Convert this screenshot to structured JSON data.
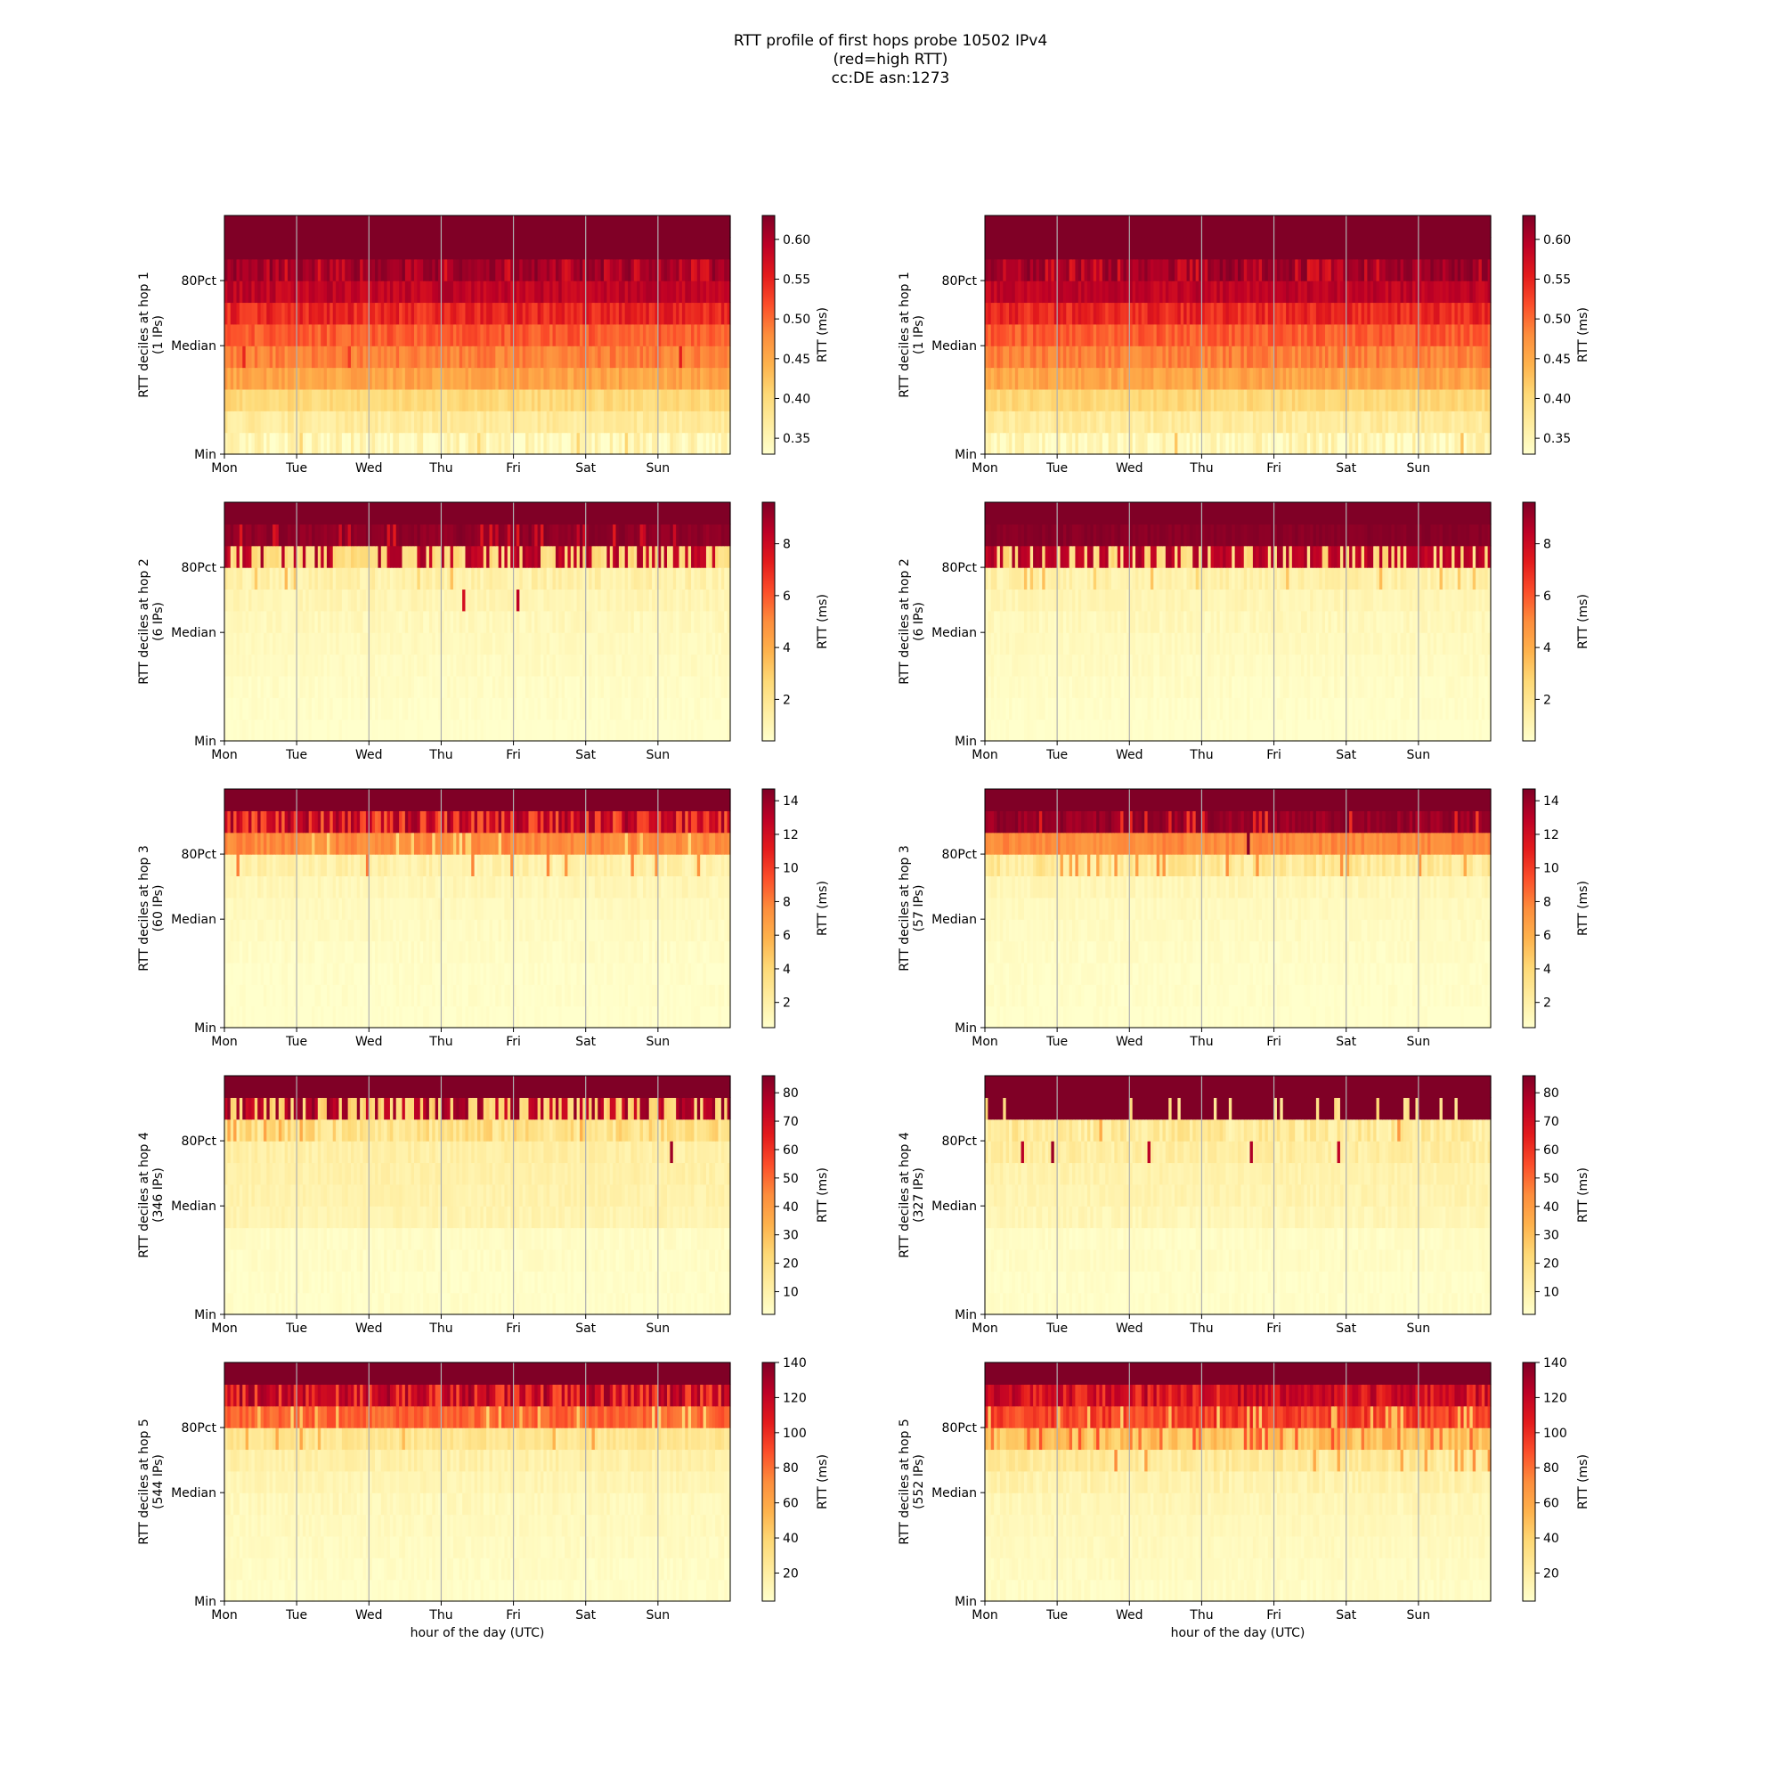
{
  "title": {
    "line1": "RTT profile of first hops probe 10502 IPv4",
    "line2": "(red=high RTT)",
    "line3": "cc:DE asn:1273"
  },
  "xlabel": "hour of the day (UTC)",
  "colorbar_label": "RTT (ms)",
  "x_ticks": [
    "Mon",
    "Tue",
    "Wed",
    "Thu",
    "Fri",
    "Sat",
    "Sun"
  ],
  "y_ticks": [
    "Min",
    "Median",
    "80Pct"
  ],
  "colormap": {
    "name": "YlOrRd",
    "stops": [
      "#ffffcc",
      "#ffeda0",
      "#fed976",
      "#feb24c",
      "#fd8d3c",
      "#fc4e2a",
      "#e31a1c",
      "#bd0026",
      "#800026"
    ]
  },
  "chart_data": [
    {
      "type": "heatmap",
      "hop": 1,
      "column": "left",
      "ylabel_line1": "RTT deciles at hop 1",
      "ylabel_line2": "(1 IPs)",
      "colorbar": {
        "range": [
          0.33,
          0.63
        ],
        "ticks": [
          0.35,
          0.4,
          0.45,
          0.5,
          0.55,
          0.6
        ],
        "tick_labels": [
          "0.35",
          "0.40",
          "0.45",
          "0.50",
          "0.55",
          "0.60"
        ]
      },
      "rows": [
        {
          "base": 0.05,
          "noise": 0.1,
          "spike": 0.02,
          "spike_value": 0.3
        },
        {
          "base": 0.14,
          "noise": 0.05,
          "spike": 0.0,
          "spike_value": 0.3
        },
        {
          "base": 0.24,
          "noise": 0.05,
          "spike": 0.0,
          "spike_value": 0.3
        },
        {
          "base": 0.42,
          "noise": 0.06,
          "spike": 0.0,
          "spike_value": 0.5
        },
        {
          "base": 0.52,
          "noise": 0.06,
          "spike": 0.01,
          "spike_value": 0.7
        },
        {
          "base": 0.6,
          "noise": 0.06,
          "spike": 0.0,
          "spike_value": 0.7
        },
        {
          "base": 0.72,
          "noise": 0.08,
          "spike": 0.0,
          "spike_value": 0.85
        },
        {
          "base": 0.86,
          "noise": 0.06,
          "spike": 0.0,
          "spike_value": 0.95
        },
        {
          "base": 0.94,
          "noise": 0.06,
          "spike": 0.2,
          "spike_value": 0.8
        },
        {
          "base": 1.0,
          "noise": 0.0,
          "spike": 0.0,
          "spike_value": 1.0
        },
        {
          "base": 1.0,
          "noise": 0.0,
          "spike": 0.0,
          "spike_value": 1.0
        }
      ]
    },
    {
      "type": "heatmap",
      "hop": 1,
      "column": "right",
      "ylabel_line1": "RTT deciles at hop 1",
      "ylabel_line2": "(1 IPs)",
      "colorbar": {
        "range": [
          0.33,
          0.63
        ],
        "ticks": [
          0.35,
          0.4,
          0.45,
          0.5,
          0.55,
          0.6
        ],
        "tick_labels": [
          "0.35",
          "0.40",
          "0.45",
          "0.50",
          "0.55",
          "0.60"
        ]
      },
      "rows": [
        {
          "base": 0.05,
          "noise": 0.1,
          "spike": 0.02,
          "spike_value": 0.3
        },
        {
          "base": 0.14,
          "noise": 0.05,
          "spike": 0.0,
          "spike_value": 0.3
        },
        {
          "base": 0.24,
          "noise": 0.05,
          "spike": 0.0,
          "spike_value": 0.3
        },
        {
          "base": 0.42,
          "noise": 0.06,
          "spike": 0.0,
          "spike_value": 0.5
        },
        {
          "base": 0.52,
          "noise": 0.06,
          "spike": 0.0,
          "spike_value": 0.7
        },
        {
          "base": 0.6,
          "noise": 0.06,
          "spike": 0.0,
          "spike_value": 0.7
        },
        {
          "base": 0.72,
          "noise": 0.08,
          "spike": 0.0,
          "spike_value": 0.85
        },
        {
          "base": 0.86,
          "noise": 0.06,
          "spike": 0.0,
          "spike_value": 0.95
        },
        {
          "base": 0.94,
          "noise": 0.06,
          "spike": 0.2,
          "spike_value": 0.8
        },
        {
          "base": 1.0,
          "noise": 0.0,
          "spike": 0.0,
          "spike_value": 1.0
        },
        {
          "base": 1.0,
          "noise": 0.0,
          "spike": 0.0,
          "spike_value": 1.0
        }
      ]
    },
    {
      "type": "heatmap",
      "hop": 2,
      "column": "left",
      "ylabel_line1": "RTT deciles at hop 2",
      "ylabel_line2": "(6 IPs)",
      "colorbar": {
        "range": [
          0.4,
          9.6
        ],
        "ticks": [
          2,
          4,
          6,
          8
        ],
        "tick_labels": [
          "2",
          "4",
          "6",
          "8"
        ]
      },
      "rows": [
        {
          "base": 0.0,
          "noise": 0.02,
          "spike": 0.0,
          "spike_value": 0.1
        },
        {
          "base": 0.01,
          "noise": 0.02,
          "spike": 0.0,
          "spike_value": 0.1
        },
        {
          "base": 0.02,
          "noise": 0.02,
          "spike": 0.0,
          "spike_value": 0.1
        },
        {
          "base": 0.03,
          "noise": 0.02,
          "spike": 0.0,
          "spike_value": 0.1
        },
        {
          "base": 0.04,
          "noise": 0.02,
          "spike": 0.0,
          "spike_value": 0.1
        },
        {
          "base": 0.05,
          "noise": 0.03,
          "spike": 0.0,
          "spike_value": 0.1
        },
        {
          "base": 0.07,
          "noise": 0.03,
          "spike": 0.02,
          "spike_value": 0.85
        },
        {
          "base": 0.1,
          "noise": 0.05,
          "spike": 0.04,
          "spike_value": 0.3
        },
        {
          "base": 0.88,
          "noise": 0.05,
          "spike": 0.55,
          "spike_value": 0.22
        },
        {
          "base": 0.97,
          "noise": 0.03,
          "spike": 0.12,
          "spike_value": 0.8
        },
        {
          "base": 1.0,
          "noise": 0.0,
          "spike": 0.0,
          "spike_value": 1.0
        }
      ]
    },
    {
      "type": "heatmap",
      "hop": 2,
      "column": "right",
      "ylabel_line1": "RTT deciles at hop 2",
      "ylabel_line2": "(6 IPs)",
      "colorbar": {
        "range": [
          0.4,
          9.6
        ],
        "ticks": [
          2,
          4,
          6,
          8
        ],
        "tick_labels": [
          "2",
          "4",
          "6",
          "8"
        ]
      },
      "rows": [
        {
          "base": 0.0,
          "noise": 0.02,
          "spike": 0.0,
          "spike_value": 0.1
        },
        {
          "base": 0.01,
          "noise": 0.02,
          "spike": 0.0,
          "spike_value": 0.1
        },
        {
          "base": 0.02,
          "noise": 0.02,
          "spike": 0.0,
          "spike_value": 0.1
        },
        {
          "base": 0.03,
          "noise": 0.02,
          "spike": 0.0,
          "spike_value": 0.1
        },
        {
          "base": 0.04,
          "noise": 0.02,
          "spike": 0.0,
          "spike_value": 0.1
        },
        {
          "base": 0.05,
          "noise": 0.03,
          "spike": 0.0,
          "spike_value": 0.1
        },
        {
          "base": 0.07,
          "noise": 0.03,
          "spike": 0.0,
          "spike_value": 0.3
        },
        {
          "base": 0.1,
          "noise": 0.05,
          "spike": 0.05,
          "spike_value": 0.3
        },
        {
          "base": 0.88,
          "noise": 0.05,
          "spike": 0.4,
          "spike_value": 0.22
        },
        {
          "base": 0.98,
          "noise": 0.02,
          "spike": 0.0,
          "spike_value": 0.8
        },
        {
          "base": 1.0,
          "noise": 0.0,
          "spike": 0.0,
          "spike_value": 1.0
        }
      ]
    },
    {
      "type": "heatmap",
      "hop": 3,
      "column": "left",
      "ylabel_line1": "RTT deciles at hop 3",
      "ylabel_line2": "(60 IPs)",
      "colorbar": {
        "range": [
          0.5,
          14.7
        ],
        "ticks": [
          2,
          4,
          6,
          8,
          10,
          12,
          14
        ],
        "tick_labels": [
          "2",
          "4",
          "6",
          "8",
          "10",
          "12",
          "14"
        ]
      },
      "rows": [
        {
          "base": 0.0,
          "noise": 0.02,
          "spike": 0.0,
          "spike_value": 0.1
        },
        {
          "base": 0.01,
          "noise": 0.02,
          "spike": 0.0,
          "spike_value": 0.1
        },
        {
          "base": 0.01,
          "noise": 0.02,
          "spike": 0.0,
          "spike_value": 0.1
        },
        {
          "base": 0.02,
          "noise": 0.02,
          "spike": 0.0,
          "spike_value": 0.1
        },
        {
          "base": 0.03,
          "noise": 0.02,
          "spike": 0.0,
          "spike_value": 0.1
        },
        {
          "base": 0.04,
          "noise": 0.02,
          "spike": 0.0,
          "spike_value": 0.1
        },
        {
          "base": 0.06,
          "noise": 0.03,
          "spike": 0.0,
          "spike_value": 0.1
        },
        {
          "base": 0.1,
          "noise": 0.05,
          "spike": 0.05,
          "spike_value": 0.5
        },
        {
          "base": 0.5,
          "noise": 0.05,
          "spike": 0.12,
          "spike_value": 0.25
        },
        {
          "base": 0.88,
          "noise": 0.08,
          "spike": 0.3,
          "spike_value": 0.62
        },
        {
          "base": 1.0,
          "noise": 0.0,
          "spike": 0.0,
          "spike_value": 1.0
        }
      ]
    },
    {
      "type": "heatmap",
      "hop": 3,
      "column": "right",
      "ylabel_line1": "RTT deciles at hop 3",
      "ylabel_line2": "(57 IPs)",
      "colorbar": {
        "range": [
          0.5,
          14.7
        ],
        "ticks": [
          2,
          4,
          6,
          8,
          10,
          12,
          14
        ],
        "tick_labels": [
          "2",
          "4",
          "6",
          "8",
          "10",
          "12",
          "14"
        ]
      },
      "rows": [
        {
          "base": 0.0,
          "noise": 0.02,
          "spike": 0.0,
          "spike_value": 0.1
        },
        {
          "base": 0.01,
          "noise": 0.02,
          "spike": 0.0,
          "spike_value": 0.1
        },
        {
          "base": 0.01,
          "noise": 0.02,
          "spike": 0.0,
          "spike_value": 0.1
        },
        {
          "base": 0.02,
          "noise": 0.02,
          "spike": 0.0,
          "spike_value": 0.1
        },
        {
          "base": 0.03,
          "noise": 0.02,
          "spike": 0.0,
          "spike_value": 0.1
        },
        {
          "base": 0.04,
          "noise": 0.02,
          "spike": 0.0,
          "spike_value": 0.1
        },
        {
          "base": 0.06,
          "noise": 0.03,
          "spike": 0.0,
          "spike_value": 0.1
        },
        {
          "base": 0.15,
          "noise": 0.08,
          "spike": 0.1,
          "spike_value": 0.45
        },
        {
          "base": 0.5,
          "noise": 0.05,
          "spike": 0.03,
          "spike_value": 0.95
        },
        {
          "base": 0.95,
          "noise": 0.05,
          "spike": 0.08,
          "spike_value": 0.7
        },
        {
          "base": 1.0,
          "noise": 0.0,
          "spike": 0.0,
          "spike_value": 1.0
        }
      ]
    },
    {
      "type": "heatmap",
      "hop": 4,
      "column": "left",
      "ylabel_line1": "RTT deciles at hop 4",
      "ylabel_line2": "(346 IPs)",
      "colorbar": {
        "range": [
          2.0,
          86.0
        ],
        "ticks": [
          10,
          20,
          30,
          40,
          50,
          60,
          70,
          80
        ],
        "tick_labels": [
          "10",
          "20",
          "30",
          "40",
          "50",
          "60",
          "70",
          "80"
        ]
      },
      "rows": [
        {
          "base": 0.01,
          "noise": 0.02,
          "spike": 0.0,
          "spike_value": 0.1
        },
        {
          "base": 0.01,
          "noise": 0.02,
          "spike": 0.0,
          "spike_value": 0.1
        },
        {
          "base": 0.02,
          "noise": 0.02,
          "spike": 0.0,
          "spike_value": 0.1
        },
        {
          "base": 0.02,
          "noise": 0.02,
          "spike": 0.0,
          "spike_value": 0.1
        },
        {
          "base": 0.08,
          "noise": 0.03,
          "spike": 0.0,
          "spike_value": 0.1
        },
        {
          "base": 0.09,
          "noise": 0.03,
          "spike": 0.0,
          "spike_value": 0.1
        },
        {
          "base": 0.1,
          "noise": 0.03,
          "spike": 0.0,
          "spike_value": 0.1
        },
        {
          "base": 0.11,
          "noise": 0.04,
          "spike": 0.01,
          "spike_value": 0.95
        },
        {
          "base": 0.2,
          "noise": 0.1,
          "spike": 0.05,
          "spike_value": 0.4
        },
        {
          "base": 0.9,
          "noise": 0.08,
          "spike": 0.4,
          "spike_value": 0.25
        },
        {
          "base": 1.0,
          "noise": 0.0,
          "spike": 0.0,
          "spike_value": 1.0
        }
      ]
    },
    {
      "type": "heatmap",
      "hop": 4,
      "column": "right",
      "ylabel_line1": "RTT deciles at hop 4",
      "ylabel_line2": "(327 IPs)",
      "colorbar": {
        "range": [
          2.0,
          86.0
        ],
        "ticks": [
          10,
          20,
          30,
          40,
          50,
          60,
          70,
          80
        ],
        "tick_labels": [
          "10",
          "20",
          "30",
          "40",
          "50",
          "60",
          "70",
          "80"
        ]
      },
      "rows": [
        {
          "base": 0.01,
          "noise": 0.02,
          "spike": 0.0,
          "spike_value": 0.1
        },
        {
          "base": 0.01,
          "noise": 0.02,
          "spike": 0.0,
          "spike_value": 0.1
        },
        {
          "base": 0.02,
          "noise": 0.02,
          "spike": 0.0,
          "spike_value": 0.1
        },
        {
          "base": 0.02,
          "noise": 0.02,
          "spike": 0.0,
          "spike_value": 0.1
        },
        {
          "base": 0.06,
          "noise": 0.03,
          "spike": 0.0,
          "spike_value": 0.1
        },
        {
          "base": 0.08,
          "noise": 0.03,
          "spike": 0.0,
          "spike_value": 0.1
        },
        {
          "base": 0.09,
          "noise": 0.03,
          "spike": 0.0,
          "spike_value": 0.1
        },
        {
          "base": 0.12,
          "noise": 0.05,
          "spike": 0.02,
          "spike_value": 0.9
        },
        {
          "base": 0.14,
          "noise": 0.08,
          "spike": 0.02,
          "spike_value": 0.45
        },
        {
          "base": 1.0,
          "noise": 0.0,
          "spike": 0.08,
          "spike_value": 0.2
        },
        {
          "base": 1.0,
          "noise": 0.0,
          "spike": 0.0,
          "spike_value": 1.0
        }
      ]
    },
    {
      "type": "heatmap",
      "hop": 5,
      "column": "left",
      "ylabel_line1": "RTT deciles at hop 5",
      "ylabel_line2": "(544 IPs)",
      "colorbar": {
        "range": [
          4.0,
          140.0
        ],
        "ticks": [
          20,
          40,
          60,
          80,
          100,
          120,
          140
        ],
        "tick_labels": [
          "20",
          "40",
          "60",
          "80",
          "100",
          "120",
          "140"
        ]
      },
      "rows": [
        {
          "base": 0.01,
          "noise": 0.02,
          "spike": 0.0,
          "spike_value": 0.1
        },
        {
          "base": 0.02,
          "noise": 0.02,
          "spike": 0.0,
          "spike_value": 0.1
        },
        {
          "base": 0.03,
          "noise": 0.02,
          "spike": 0.0,
          "spike_value": 0.1
        },
        {
          "base": 0.04,
          "noise": 0.02,
          "spike": 0.0,
          "spike_value": 0.1
        },
        {
          "base": 0.05,
          "noise": 0.03,
          "spike": 0.0,
          "spike_value": 0.1
        },
        {
          "base": 0.07,
          "noise": 0.03,
          "spike": 0.0,
          "spike_value": 0.1
        },
        {
          "base": 0.1,
          "noise": 0.04,
          "spike": 0.0,
          "spike_value": 0.1
        },
        {
          "base": 0.17,
          "noise": 0.05,
          "spike": 0.04,
          "spike_value": 0.4
        },
        {
          "base": 0.58,
          "noise": 0.06,
          "spike": 0.12,
          "spike_value": 0.3
        },
        {
          "base": 0.88,
          "noise": 0.08,
          "spike": 0.3,
          "spike_value": 0.65
        },
        {
          "base": 1.0,
          "noise": 0.0,
          "spike": 0.0,
          "spike_value": 1.0
        }
      ]
    },
    {
      "type": "heatmap",
      "hop": 5,
      "column": "right",
      "ylabel_line1": "RTT deciles at hop 5",
      "ylabel_line2": "(552 IPs)",
      "colorbar": {
        "range": [
          4.0,
          140.0
        ],
        "ticks": [
          20,
          40,
          60,
          80,
          100,
          120,
          140
        ],
        "tick_labels": [
          "20",
          "40",
          "60",
          "80",
          "100",
          "120",
          "140"
        ]
      },
      "rows": [
        {
          "base": 0.02,
          "noise": 0.02,
          "spike": 0.0,
          "spike_value": 0.1
        },
        {
          "base": 0.03,
          "noise": 0.02,
          "spike": 0.0,
          "spike_value": 0.1
        },
        {
          "base": 0.04,
          "noise": 0.02,
          "spike": 0.0,
          "spike_value": 0.1
        },
        {
          "base": 0.05,
          "noise": 0.02,
          "spike": 0.0,
          "spike_value": 0.1
        },
        {
          "base": 0.06,
          "noise": 0.03,
          "spike": 0.0,
          "spike_value": 0.1
        },
        {
          "base": 0.09,
          "noise": 0.04,
          "spike": 0.0,
          "spike_value": 0.1
        },
        {
          "base": 0.14,
          "noise": 0.06,
          "spike": 0.04,
          "spike_value": 0.45
        },
        {
          "base": 0.32,
          "noise": 0.08,
          "spike": 0.15,
          "spike_value": 0.58
        },
        {
          "base": 0.66,
          "noise": 0.08,
          "spike": 0.1,
          "spike_value": 0.3
        },
        {
          "base": 0.84,
          "noise": 0.08,
          "spike": 0.25,
          "spike_value": 0.7
        },
        {
          "base": 1.0,
          "noise": 0.0,
          "spike": 0.0,
          "spike_value": 1.0
        }
      ]
    }
  ]
}
